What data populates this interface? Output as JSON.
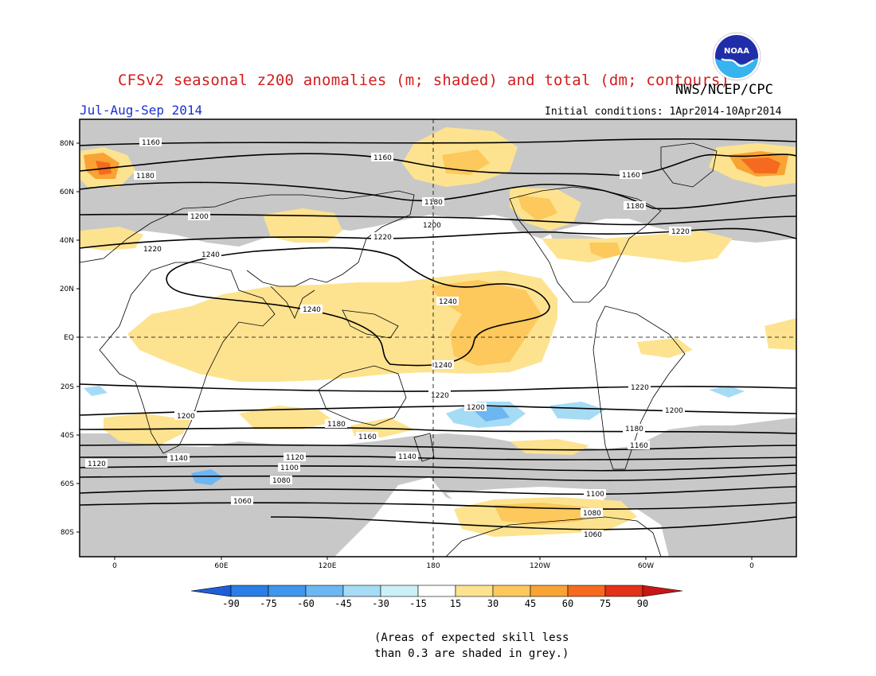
{
  "title": "CFSv2 seasonal z200 anomalies (m; shaded) and total (dm; contours)",
  "agency": "NWS/NCEP/CPC",
  "season": "Jul-Aug-Sep 2014",
  "initial_conditions": "Initial conditions: 1Apr2014-10Apr2014",
  "logo_text": "NOAA",
  "lat_ticks": [
    "80N",
    "60N",
    "40N",
    "20N",
    "EQ",
    "20S",
    "40S",
    "60S",
    "80S"
  ],
  "lon_ticks": [
    "0",
    "60E",
    "120E",
    "180",
    "120W",
    "60W",
    "0"
  ],
  "contour_labels": [
    "1160",
    "1160",
    "1180",
    "1160",
    "1180",
    "1180",
    "1200",
    "1200",
    "1220",
    "1220",
    "1220",
    "1240",
    "1240",
    "1240",
    "1240",
    "1220",
    "1220",
    "1200",
    "1200",
    "1200",
    "1180",
    "1180",
    "1160",
    "1160",
    "1140",
    "1140",
    "1120",
    "1120",
    "1100",
    "1100",
    "1080",
    "1080",
    "1060",
    "1060"
  ],
  "colorbar": {
    "labels": [
      "-90",
      "-75",
      "-60",
      "-45",
      "-30",
      "-15",
      "15",
      "30",
      "45",
      "60",
      "75",
      "90"
    ],
    "colors": [
      "#1e5fd8",
      "#2a7ee6",
      "#3f96ec",
      "#6cb6f2",
      "#a6dbf5",
      "#cdeff7",
      "#ffffff",
      "#fde38f",
      "#fdc85c",
      "#f9a334",
      "#f56a1e",
      "#e33217",
      "#c71616"
    ]
  },
  "note_line1": "(Areas of expected skill less",
  "note_line2": "than 0.3 are shaded in grey.)",
  "colors": {
    "title": "#d21d1d",
    "season": "#1b2fd0",
    "grey_mask": "#c8c8c8",
    "land_line": "#000000"
  }
}
